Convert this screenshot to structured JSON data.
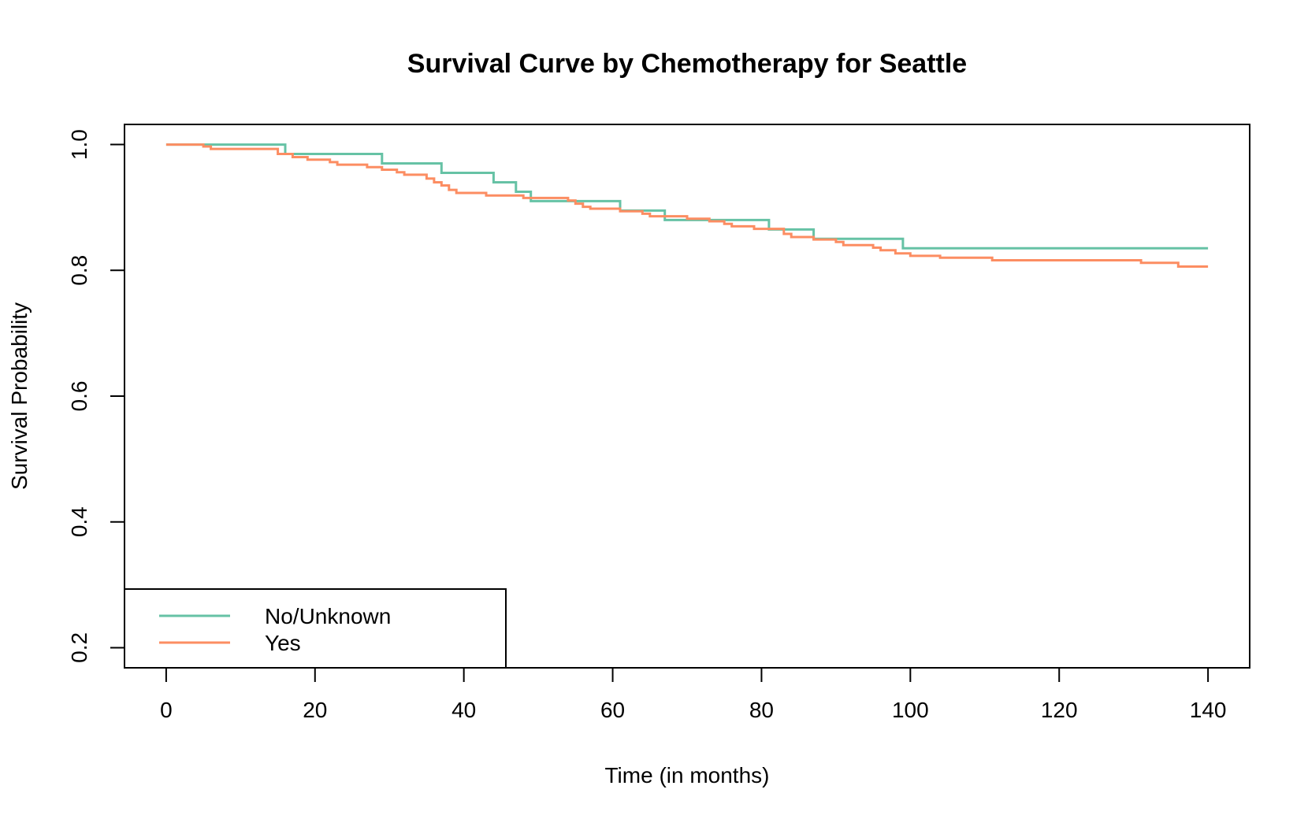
{
  "chart_data": {
    "type": "line",
    "step": true,
    "title": "Survival Curve by Chemotherapy for Seattle",
    "xlabel": "Time (in months)",
    "ylabel": "Survival Probability",
    "xlim": [
      -5.6,
      145.6
    ],
    "ylim": [
      0.168,
      1.032
    ],
    "x_ticks": [
      0,
      20,
      40,
      60,
      80,
      100,
      120,
      140
    ],
    "x_tick_labels": [
      "0",
      "20",
      "40",
      "60",
      "80",
      "100",
      "120",
      "140"
    ],
    "y_ticks": [
      0.2,
      0.4,
      0.6,
      0.8,
      1.0
    ],
    "y_tick_labels": [
      "0.2",
      "0.4",
      "0.6",
      "0.8",
      "1.0"
    ],
    "grid": false,
    "legend_position": "bottom-left",
    "series": [
      {
        "name": "No/Unknown",
        "color": "#66c2a5",
        "points": [
          [
            0,
            1.0
          ],
          [
            16,
            0.985
          ],
          [
            29,
            0.97
          ],
          [
            37,
            0.955
          ],
          [
            44,
            0.94
          ],
          [
            47,
            0.925
          ],
          [
            49,
            0.91
          ],
          [
            61,
            0.895
          ],
          [
            67,
            0.88
          ],
          [
            81,
            0.865
          ],
          [
            87,
            0.85
          ],
          [
            99,
            0.835
          ],
          [
            140,
            0.835
          ]
        ]
      },
      {
        "name": "Yes",
        "color": "#fc8d62",
        "points": [
          [
            0,
            1.0
          ],
          [
            5,
            0.997
          ],
          [
            6,
            0.993
          ],
          [
            15,
            0.985
          ],
          [
            17,
            0.98
          ],
          [
            19,
            0.976
          ],
          [
            22,
            0.972
          ],
          [
            23,
            0.968
          ],
          [
            27,
            0.964
          ],
          [
            29,
            0.96
          ],
          [
            31,
            0.956
          ],
          [
            32,
            0.952
          ],
          [
            35,
            0.946
          ],
          [
            36,
            0.94
          ],
          [
            37,
            0.935
          ],
          [
            38,
            0.928
          ],
          [
            39,
            0.923
          ],
          [
            43,
            0.919
          ],
          [
            48,
            0.915
          ],
          [
            54,
            0.911
          ],
          [
            55,
            0.906
          ],
          [
            56,
            0.901
          ],
          [
            57,
            0.898
          ],
          [
            61,
            0.894
          ],
          [
            64,
            0.89
          ],
          [
            65,
            0.886
          ],
          [
            70,
            0.882
          ],
          [
            73,
            0.878
          ],
          [
            75,
            0.874
          ],
          [
            76,
            0.87
          ],
          [
            79,
            0.866
          ],
          [
            83,
            0.858
          ],
          [
            84,
            0.853
          ],
          [
            87,
            0.849
          ],
          [
            90,
            0.845
          ],
          [
            91,
            0.84
          ],
          [
            95,
            0.836
          ],
          [
            96,
            0.832
          ],
          [
            98,
            0.827
          ],
          [
            100,
            0.823
          ],
          [
            104,
            0.82
          ],
          [
            111,
            0.816
          ],
          [
            131,
            0.812
          ],
          [
            136,
            0.806
          ],
          [
            140,
            0.806
          ]
        ]
      }
    ]
  }
}
